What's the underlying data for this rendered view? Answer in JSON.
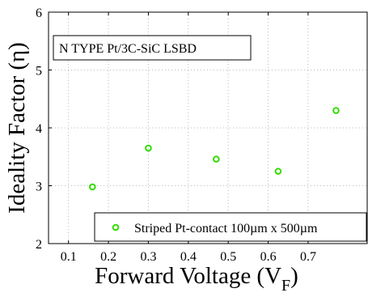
{
  "chart_data": {
    "type": "scatter",
    "x": [
      0.16,
      0.3,
      0.47,
      0.625,
      0.77
    ],
    "y": [
      2.98,
      3.65,
      3.46,
      3.25,
      4.3
    ],
    "series": [
      {
        "name": "Striped Pt-contact 100µm x 500µm",
        "color": "#33dd00",
        "x": [
          0.16,
          0.3,
          0.47,
          0.625,
          0.77
        ],
        "y": [
          2.98,
          3.65,
          3.46,
          3.25,
          4.3
        ]
      }
    ],
    "annotation": "N TYPE Pt/3C-SiC LSBD",
    "xlabel": "Forward Voltage (V",
    "xlabel_sub": "F",
    "xlabel_close": ")",
    "ylabel": "Ideality Factor (η)",
    "xlim": [
      0.05,
      0.85
    ],
    "ylim": [
      2,
      6
    ],
    "xticks": [
      0.1,
      0.2,
      0.3,
      0.4,
      0.5,
      0.6,
      0.7
    ],
    "yticks": [
      2,
      3,
      4,
      5,
      6
    ],
    "grid": true,
    "legend_position": "bottom-right"
  }
}
